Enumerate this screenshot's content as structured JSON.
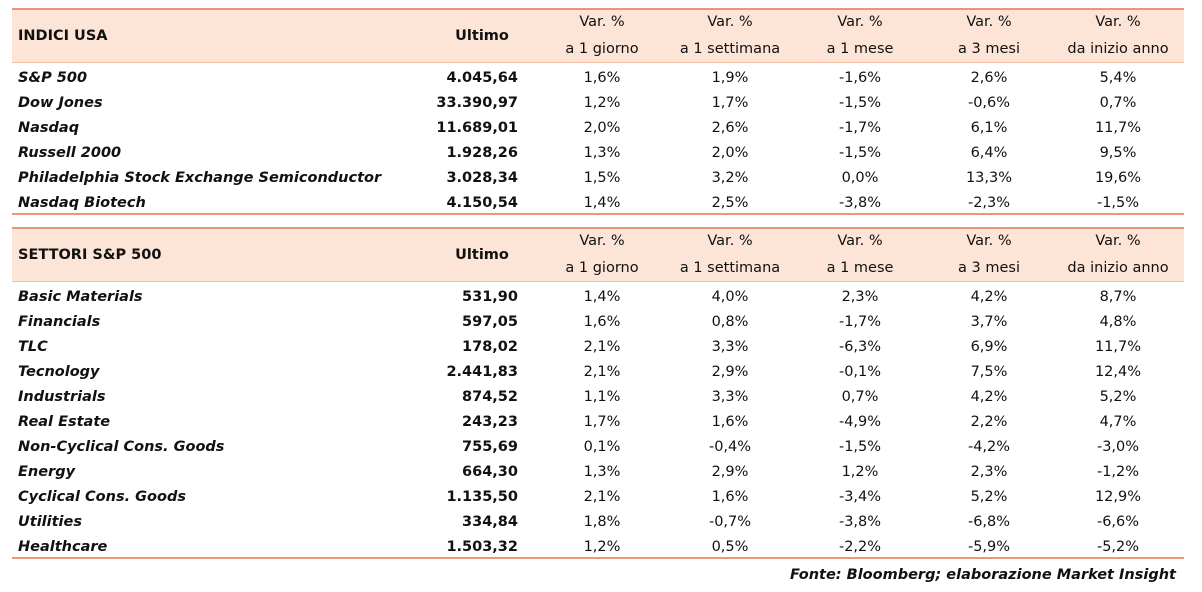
{
  "tables": [
    {
      "title": "INDICI USA",
      "last_header": "Ultimo",
      "var_headers": [
        [
          "Var. %",
          "a 1 giorno"
        ],
        [
          "Var. %",
          "a 1 settimana"
        ],
        [
          "Var. %",
          "a 1 mese"
        ],
        [
          "Var. %",
          "a 3 mesi"
        ],
        [
          "Var. %",
          "da inizio anno"
        ]
      ],
      "rows": [
        [
          "S&P 500",
          "4.045,64",
          "1,6%",
          "1,9%",
          "-1,6%",
          "2,6%",
          "5,4%"
        ],
        [
          "Dow Jones",
          "33.390,97",
          "1,2%",
          "1,7%",
          "-1,5%",
          "-0,6%",
          "0,7%"
        ],
        [
          "Nasdaq",
          "11.689,01",
          "2,0%",
          "2,6%",
          "-1,7%",
          "6,1%",
          "11,7%"
        ],
        [
          "Russell 2000",
          "1.928,26",
          "1,3%",
          "2,0%",
          "-1,5%",
          "6,4%",
          "9,5%"
        ],
        [
          "Philadelphia Stock Exchange Semiconductor",
          "3.028,34",
          "1,5%",
          "3,2%",
          "0,0%",
          "13,3%",
          "19,6%"
        ],
        [
          "Nasdaq Biotech",
          "4.150,54",
          "1,4%",
          "2,5%",
          "-3,8%",
          "-2,3%",
          "-1,5%"
        ]
      ]
    },
    {
      "title": "SETTORI S&P 500",
      "last_header": "Ultimo",
      "var_headers": [
        [
          "Var. %",
          "a 1 giorno"
        ],
        [
          "Var. %",
          "a 1 settimana"
        ],
        [
          "Var. %",
          "a 1 mese"
        ],
        [
          "Var. %",
          "a 3 mesi"
        ],
        [
          "Var. %",
          "da inizio anno"
        ]
      ],
      "rows": [
        [
          "Basic Materials",
          "531,90",
          "1,4%",
          "4,0%",
          "2,3%",
          "4,2%",
          "8,7%"
        ],
        [
          "Financials",
          "597,05",
          "1,6%",
          "0,8%",
          "-1,7%",
          "3,7%",
          "4,8%"
        ],
        [
          "TLC",
          "178,02",
          "2,1%",
          "3,3%",
          "-6,3%",
          "6,9%",
          "11,7%"
        ],
        [
          "Tecnology",
          "2.441,83",
          "2,1%",
          "2,9%",
          "-0,1%",
          "7,5%",
          "12,4%"
        ],
        [
          "Industrials",
          "874,52",
          "1,1%",
          "3,3%",
          "0,7%",
          "4,2%",
          "5,2%"
        ],
        [
          "Real Estate",
          "243,23",
          "1,7%",
          "1,6%",
          "-4,9%",
          "2,2%",
          "4,7%"
        ],
        [
          "Non-Cyclical Cons. Goods",
          "755,69",
          "0,1%",
          "-0,4%",
          "-1,5%",
          "-4,2%",
          "-3,0%"
        ],
        [
          "Energy",
          "664,30",
          "1,3%",
          "2,9%",
          "1,2%",
          "2,3%",
          "-1,2%"
        ],
        [
          "Cyclical Cons. Goods",
          "1.135,50",
          "2,1%",
          "1,6%",
          "-3,4%",
          "5,2%",
          "12,9%"
        ],
        [
          "Utilities",
          "334,84",
          "1,8%",
          "-0,7%",
          "-3,8%",
          "-6,8%",
          "-6,6%"
        ],
        [
          "Healthcare",
          "1.503,32",
          "1,2%",
          "0,5%",
          "-2,2%",
          "-5,9%",
          "-5,2%"
        ]
      ]
    }
  ],
  "source": "Fonte: Bloomberg; elaborazione Market Insight"
}
